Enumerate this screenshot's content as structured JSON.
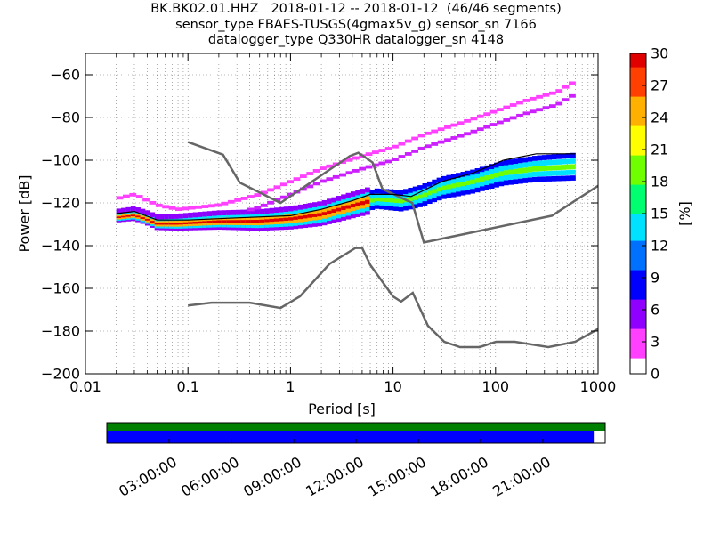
{
  "title_lines": [
    "BK.BK02.01.HHZ   2018-01-12 -- 2018-01-12  (46/46 segments)",
    "sensor_type FBAES-TUSGS(4gmax5v_g) sensor_sn 7166",
    "datalogger_type Q330HR datalogger_sn 4148"
  ],
  "chart_data": [
    {
      "type": "heatmap",
      "xlabel": "Period [s]",
      "ylabel": "Power [dB]",
      "x_scale": "log",
      "xlim": [
        0.01,
        1000
      ],
      "ylim": [
        -200,
        -50
      ],
      "x_ticks": [
        0.01,
        0.1,
        1,
        10,
        100,
        1000
      ],
      "x_tick_labels": [
        "0.01",
        "0.1",
        "1",
        "10",
        "100",
        "1000"
      ],
      "y_ticks": [
        -200,
        -180,
        -160,
        -140,
        -120,
        -100,
        -80,
        -60
      ],
      "y_tick_labels": [
        "−200",
        "−180",
        "−160",
        "−140",
        "−120",
        "−100",
        "−80",
        "−60"
      ],
      "grid": true,
      "colorbar": {
        "label": "[%]",
        "range": [
          0,
          30
        ],
        "ticks": [
          0,
          3,
          6,
          9,
          12,
          15,
          18,
          21,
          24,
          27,
          30
        ],
        "tick_labels": [
          "0",
          "3",
          "6",
          "9",
          "12",
          "15",
          "18",
          "21",
          "24",
          "27",
          "30"
        ],
        "colors": [
          "#ffffff",
          "#ff40ff",
          "#9000ff",
          "#0000ff",
          "#0070ff",
          "#00e0ff",
          "#00ff70",
          "#70ff00",
          "#ffff00",
          "#ffb000",
          "#ff4000",
          "#e00000"
        ]
      },
      "noise_models": [
        {
          "name": "NHNM",
          "color": "#666666",
          "x": [
            0.1,
            0.22,
            0.32,
            0.8,
            3.8,
            4.6,
            6.3,
            7.9,
            15.4,
            20,
            354.8,
            1000
          ],
          "y": [
            -91.5,
            -97.4,
            -110.5,
            -120,
            -98,
            -96.5,
            -101,
            -113.5,
            -120,
            -138.5,
            -126,
            -112
          ]
        },
        {
          "name": "NLNM",
          "color": "#666666",
          "x": [
            0.1,
            0.17,
            0.4,
            0.8,
            1.24,
            2.4,
            4.3,
            5,
            6,
            10,
            12,
            15.6,
            21.9,
            31.6,
            45,
            70,
            101,
            154,
            328,
            600,
            1000
          ],
          "y": [
            -168,
            -166.7,
            -166.7,
            -169.2,
            -163.7,
            -148.6,
            -141.1,
            -141.1,
            -149,
            -163.8,
            -166.2,
            -162.1,
            -177.5,
            -185,
            -187.5,
            -187.5,
            -185,
            -185,
            -187.5,
            -185,
            -179
          ]
        }
      ],
      "mode_band": [
        {
          "x": 0.02,
          "y": -126
        },
        {
          "x": 0.03,
          "y": -125
        },
        {
          "x": 0.04,
          "y": -127
        },
        {
          "x": 0.05,
          "y": -129
        },
        {
          "x": 0.08,
          "y": -129
        },
        {
          "x": 0.2,
          "y": -128
        },
        {
          "x": 0.5,
          "y": -128
        },
        {
          "x": 1,
          "y": -127
        },
        {
          "x": 2,
          "y": -125
        },
        {
          "x": 4,
          "y": -121
        },
        {
          "x": 7,
          "y": -118
        },
        {
          "x": 12,
          "y": -119
        },
        {
          "x": 18,
          "y": -117
        },
        {
          "x": 30,
          "y": -113
        },
        {
          "x": 60,
          "y": -110
        },
        {
          "x": 120,
          "y": -106
        },
        {
          "x": 250,
          "y": -104
        },
        {
          "x": 600,
          "y": -103
        }
      ],
      "upper_band": [
        {
          "x": 0.02,
          "y": -118
        },
        {
          "x": 0.03,
          "y": -116
        },
        {
          "x": 0.05,
          "y": -121
        },
        {
          "x": 0.08,
          "y": -123
        },
        {
          "x": 0.2,
          "y": -121
        },
        {
          "x": 0.5,
          "y": -116
        },
        {
          "x": 1,
          "y": -110
        },
        {
          "x": 2,
          "y": -104
        },
        {
          "x": 5,
          "y": -98
        },
        {
          "x": 10,
          "y": -94
        },
        {
          "x": 20,
          "y": -88
        },
        {
          "x": 50,
          "y": -82
        },
        {
          "x": 100,
          "y": -77
        },
        {
          "x": 200,
          "y": -72
        },
        {
          "x": 400,
          "y": -68
        },
        {
          "x": 600,
          "y": -63
        }
      ],
      "minimum_curve": [
        {
          "x": 0.02,
          "y": -125
        },
        {
          "x": 0.03,
          "y": -124
        },
        {
          "x": 0.05,
          "y": -128
        },
        {
          "x": 0.1,
          "y": -128
        },
        {
          "x": 0.3,
          "y": -127
        },
        {
          "x": 1,
          "y": -126
        },
        {
          "x": 2,
          "y": -123
        },
        {
          "x": 4,
          "y": -119
        },
        {
          "x": 6,
          "y": -116
        },
        {
          "x": 10,
          "y": -116
        },
        {
          "x": 15,
          "y": -117
        },
        {
          "x": 30,
          "y": -110
        },
        {
          "x": 60,
          "y": -106
        },
        {
          "x": 120,
          "y": -100
        },
        {
          "x": 250,
          "y": -97
        },
        {
          "x": 600,
          "y": -97
        }
      ]
    },
    {
      "type": "bar",
      "name": "data-availability",
      "x_tick_labels": [
        "03:00:00",
        "06:00:00",
        "09:00:00",
        "12:00:00",
        "15:00:00",
        "18:00:00",
        "21:00:00"
      ],
      "x_ticks_hours": [
        3,
        6,
        9,
        12,
        15,
        18,
        21
      ],
      "xlim_hours": [
        0,
        24
      ],
      "bars": [
        {
          "role": "segments",
          "start": 0,
          "end": 24,
          "color": "#008000"
        },
        {
          "role": "psd",
          "start": 0,
          "end": 23.45,
          "color": "#0000ff"
        }
      ]
    }
  ]
}
